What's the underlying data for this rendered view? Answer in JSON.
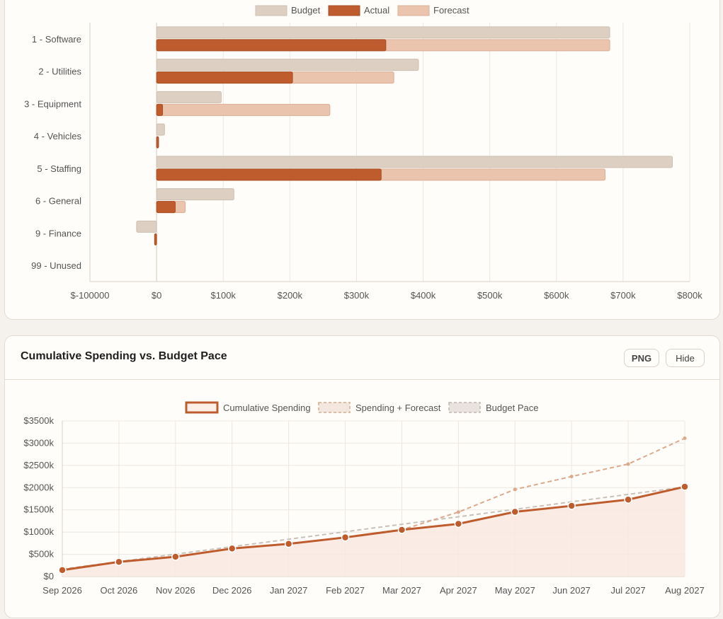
{
  "budget_chart": {
    "chart_data": {
      "type": "bar",
      "orientation": "horizontal",
      "categories": [
        "1 - Software",
        "2 - Utilities",
        "3 - Equipment",
        "4 - Vehicles",
        "5 - Staffing",
        "6 - General",
        "9 - Finance",
        "99 - Unused"
      ],
      "series": [
        {
          "name": "Budget",
          "values": [
            680000,
            393000,
            97000,
            12000,
            774000,
            116000,
            -30000,
            0
          ]
        },
        {
          "name": "Actual",
          "values": [
            344000,
            204000,
            9000,
            3000,
            337000,
            28000,
            -3000,
            0
          ]
        },
        {
          "name": "Forecast",
          "values": [
            680000,
            356000,
            260000,
            3000,
            673000,
            43000,
            0,
            0
          ]
        }
      ],
      "xlim": [
        -100000,
        800000
      ],
      "x_ticks": [
        -100000,
        0,
        100000,
        200000,
        300000,
        400000,
        500000,
        600000,
        700000,
        800000
      ],
      "x_tick_labels": [
        "$-100000",
        "$0",
        "$100k",
        "$200k",
        "$300k",
        "$400k",
        "$500k",
        "$600k",
        "$700k",
        "$800k"
      ],
      "legend": [
        "Budget",
        "Actual",
        "Forecast"
      ],
      "legend_position": "top-center",
      "grid": true
    }
  },
  "cumulative_card": {
    "title": "Cumulative Spending vs. Budget Pace",
    "png_label": "PNG",
    "hide_label": "Hide",
    "chart_data": {
      "type": "line",
      "title": "Cumulative Spending vs. Budget Pace",
      "categories": [
        "Sep 2026",
        "Oct 2026",
        "Nov 2026",
        "Dec 2026",
        "Jan 2027",
        "Feb 2027",
        "Mar 2027",
        "Apr 2027",
        "May 2027",
        "Jun 2027",
        "Jul 2027",
        "Aug 2027"
      ],
      "series": [
        {
          "name": "Cumulative Spending",
          "values": [
            145000,
            330000,
            445000,
            630000,
            735000,
            880000,
            1050000,
            1185000,
            1455000,
            1590000,
            1730000,
            2020000
          ],
          "style": "solid-filled"
        },
        {
          "name": "Spending + Forecast",
          "values": [
            145000,
            330000,
            445000,
            630000,
            735000,
            880000,
            1050000,
            1450000,
            1960000,
            2250000,
            2530000,
            3110000
          ],
          "style": "dashed"
        },
        {
          "name": "Budget Pace",
          "values": [
            168000,
            336000,
            504000,
            672000,
            840000,
            1008000,
            1176000,
            1344000,
            1512000,
            1680000,
            1848000,
            2016000
          ],
          "style": "dashed"
        }
      ],
      "ylim": [
        0,
        3500000
      ],
      "y_ticks": [
        0,
        500000,
        1000000,
        1500000,
        2000000,
        2500000,
        3000000,
        3500000
      ],
      "y_tick_labels": [
        "$0",
        "$500k",
        "$1000k",
        "$1500k",
        "$2000k",
        "$2500k",
        "$3000k",
        "$3500k"
      ],
      "legend": [
        "Cumulative Spending",
        "Spending + Forecast",
        "Budget Pace"
      ],
      "legend_position": "top-center",
      "grid": true
    }
  },
  "colors": {
    "budget": "#ddd0c2",
    "actual": "#bf5c2e",
    "forecast": "#ebc4ae",
    "grid": "#ece6df",
    "axis": "#d8d0c6",
    "area": "#f9e9df"
  }
}
